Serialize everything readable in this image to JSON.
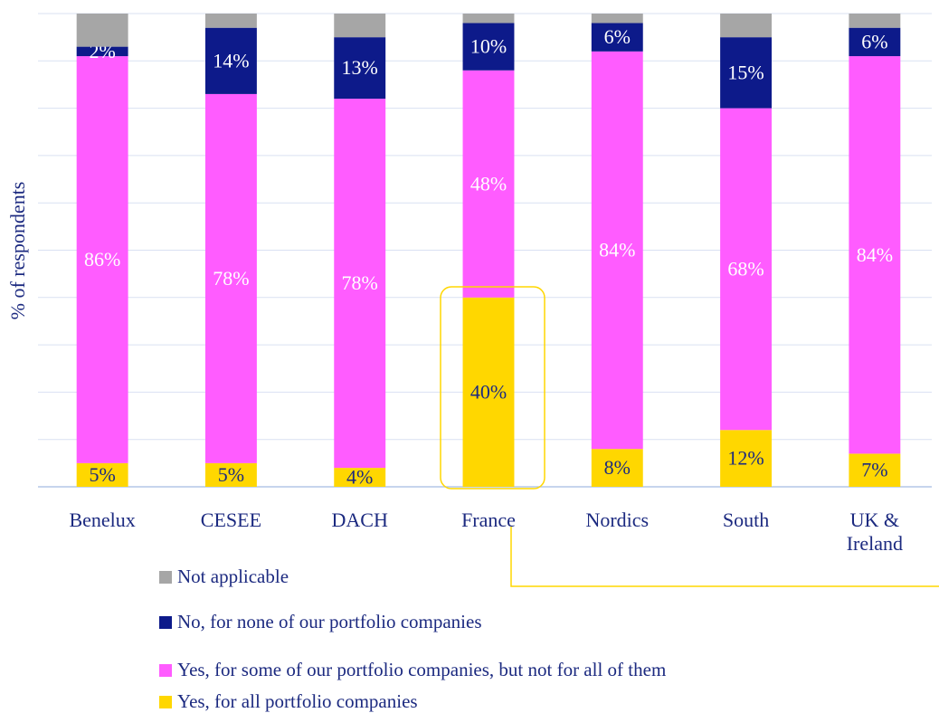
{
  "chart_data": {
    "type": "stacked_bar",
    "y_label": "% of respondents",
    "categories": [
      "Benelux",
      "CESEE",
      "DACH",
      "France",
      "Nordics",
      "South",
      "UK & Ireland"
    ],
    "series": [
      {
        "name": "Yes, for all portfolio companies",
        "color": "#ffd700",
        "label_color": "#1c2a80",
        "values": [
          5,
          5,
          4,
          40,
          8,
          12,
          7
        ],
        "value_labels": [
          "5%",
          "5%",
          "4%",
          "40%",
          "8%",
          "12%",
          "7%"
        ]
      },
      {
        "name": "Yes, for some of our portfolio companies, but not for all of them",
        "color": "#ff5cff",
        "label_color": "#ffffff",
        "values": [
          86,
          78,
          78,
          48,
          84,
          68,
          84
        ],
        "value_labels": [
          "86%",
          "78%",
          "78%",
          "48%",
          "84%",
          "68%",
          "84%"
        ]
      },
      {
        "name": "No, for none of our portfolio companies",
        "color": "#0d1a8a",
        "label_color": "#ffffff",
        "values": [
          2,
          14,
          13,
          10,
          6,
          15,
          6
        ],
        "value_labels": [
          "2%",
          "14%",
          "13%",
          "10%",
          "6%",
          "15%",
          "6%"
        ]
      },
      {
        "name": "Not applicable",
        "color": "#a6a6a6",
        "values": [
          7,
          3,
          5,
          2,
          2,
          5,
          3
        ]
      }
    ],
    "ylim": [
      0,
      100
    ],
    "yticks": [
      0,
      10,
      20,
      30,
      40,
      50,
      60,
      70,
      80,
      90,
      100
    ],
    "grid": true
  }
}
